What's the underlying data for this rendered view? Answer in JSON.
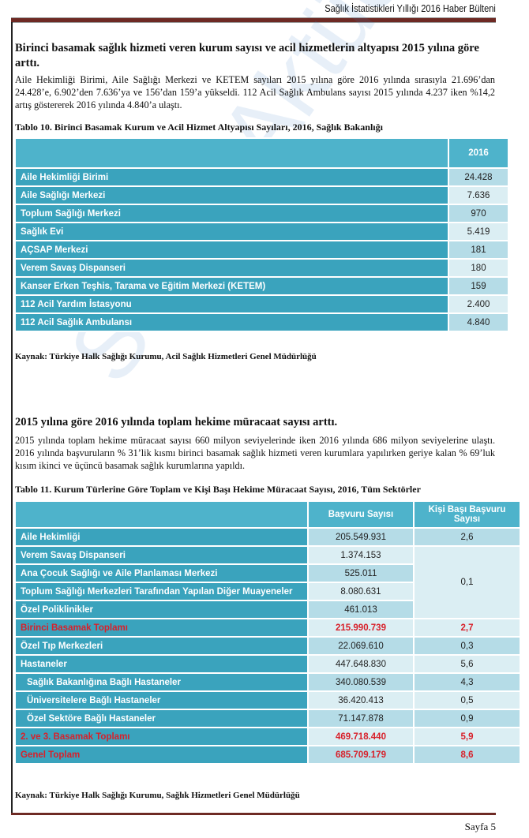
{
  "header": {
    "title": "Sağlık İstatistikleri Yıllığı 2016 Haber Bülteni"
  },
  "footer": {
    "page": "Sayfa 5"
  },
  "watermark": "SağlıkAktüel",
  "section1": {
    "heading": "Birinci basamak sağlık hizmeti veren kurum sayısı ve acil hizmetlerin altyapısı 2015 yılına göre arttı.",
    "body": "Aile Hekimliği Birimi, Aile Sağlığı Merkezi ve KETEM sayıları 2015 yılına göre 2016 yılında sırasıyla 21.696’dan 24.428’e, 6.902’den 7.636’ya ve 156’dan 159’a yükseldi. 112 Acil Sağlık Ambulans sayısı 2015 yılında 4.237 iken %14,2 artış göstererek 2016 yılında 4.840’a ulaştı.",
    "table_caption": "Tablo 10. Birinci Basamak Kurum ve Acil Hizmet Altyapısı Sayıları, 2016, Sağlık Bakanlığı",
    "table": {
      "header": [
        "",
        "2016"
      ],
      "rows": [
        [
          "Aile Hekimliği Birimi",
          "24.428"
        ],
        [
          "Aile Sağlığı Merkezi",
          "7.636"
        ],
        [
          "Toplum Sağlığı Merkezi",
          "970"
        ],
        [
          "Sağlık Evi",
          "5.419"
        ],
        [
          "AÇSAP Merkezi",
          "181"
        ],
        [
          "Verem Savaş Dispanseri",
          "180"
        ],
        [
          "Kanser Erken Teşhis, Tarama ve Eğitim Merkezi (KETEM)",
          "159"
        ],
        [
          "112 Acil Yardım İstasyonu",
          "2.400"
        ],
        [
          "112 Acil Sağlık Ambulansı",
          "4.840"
        ]
      ]
    },
    "source": "Kaynak: Türkiye Halk Sağlığı Kurumu, Acil Sağlık Hizmetleri Genel Müdürlüğü"
  },
  "section2": {
    "heading": "2015 yılına göre 2016 yılında toplam hekime müracaat sayısı arttı.",
    "body": "2015 yılında toplam hekime müracaat sayısı 660 milyon seviyelerinde iken 2016 yılında 686 milyon seviyelerine ulaştı. 2016 yılında başvuruların % 31’lik kısmı birinci basamak sağlık hizmeti veren kurumlara yapılırken geriye kalan % 69’luk kısım ikinci ve üçüncü basamak sağlık kurumlarına yapıldı.",
    "table_caption": "Tablo 11. Kurum Türlerine Göre Toplam ve Kişi Başı Hekime Müracaat Sayısı, 2016,  Tüm Sektörler",
    "table": {
      "header": [
        "",
        "Başvuru Sayısı",
        "Kişi Başı Başvuru Sayısı"
      ],
      "rows": [
        [
          "Aile Hekimliği",
          "205.549.931",
          "2,6"
        ],
        [
          "Verem Savaş Dispanseri",
          "1.374.153",
          "0,1"
        ],
        [
          "Ana Çocuk Sağlığı ve Aile Planlaması Merkezi",
          "525.011"
        ],
        [
          "Toplum Sağlığı Merkezleri Tarafından Yapılan Diğer Muayeneler",
          "8.080.631"
        ],
        [
          "Özel Poliklinikler",
          "461.013"
        ],
        [
          "Birinci Basamak Toplamı",
          "215.990.739",
          "2,7"
        ],
        [
          "Özel Tıp Merkezleri",
          "22.069.610",
          "0,3"
        ],
        [
          "Hastaneler",
          "447.648.830",
          "5,6"
        ],
        [
          "Sağlık Bakanlığına Bağlı Hastaneler",
          "340.080.539",
          "4,3"
        ],
        [
          "Üniversitelere Bağlı Hastaneler",
          "36.420.413",
          "0,5"
        ],
        [
          "Özel Sektöre Bağlı Hastaneler",
          "71.147.878",
          "0,9"
        ],
        [
          "2. ve 3. Basamak Toplamı",
          "469.718.440",
          "5,9"
        ],
        [
          "Genel Toplam",
          "685.709.179",
          "8,6"
        ]
      ]
    },
    "source": "Kaynak: Türkiye Halk Sağlığı Kurumu, Sağlık Hizmetleri Genel Müdürlüğü"
  },
  "colors": {
    "label_cell": "#3aa3bd",
    "header_cell": "#4eb3cb",
    "value_dark": "#b5dce7",
    "value_light": "#dbeef3",
    "total_text": "#d8202a",
    "rule": "#6e2a24"
  }
}
